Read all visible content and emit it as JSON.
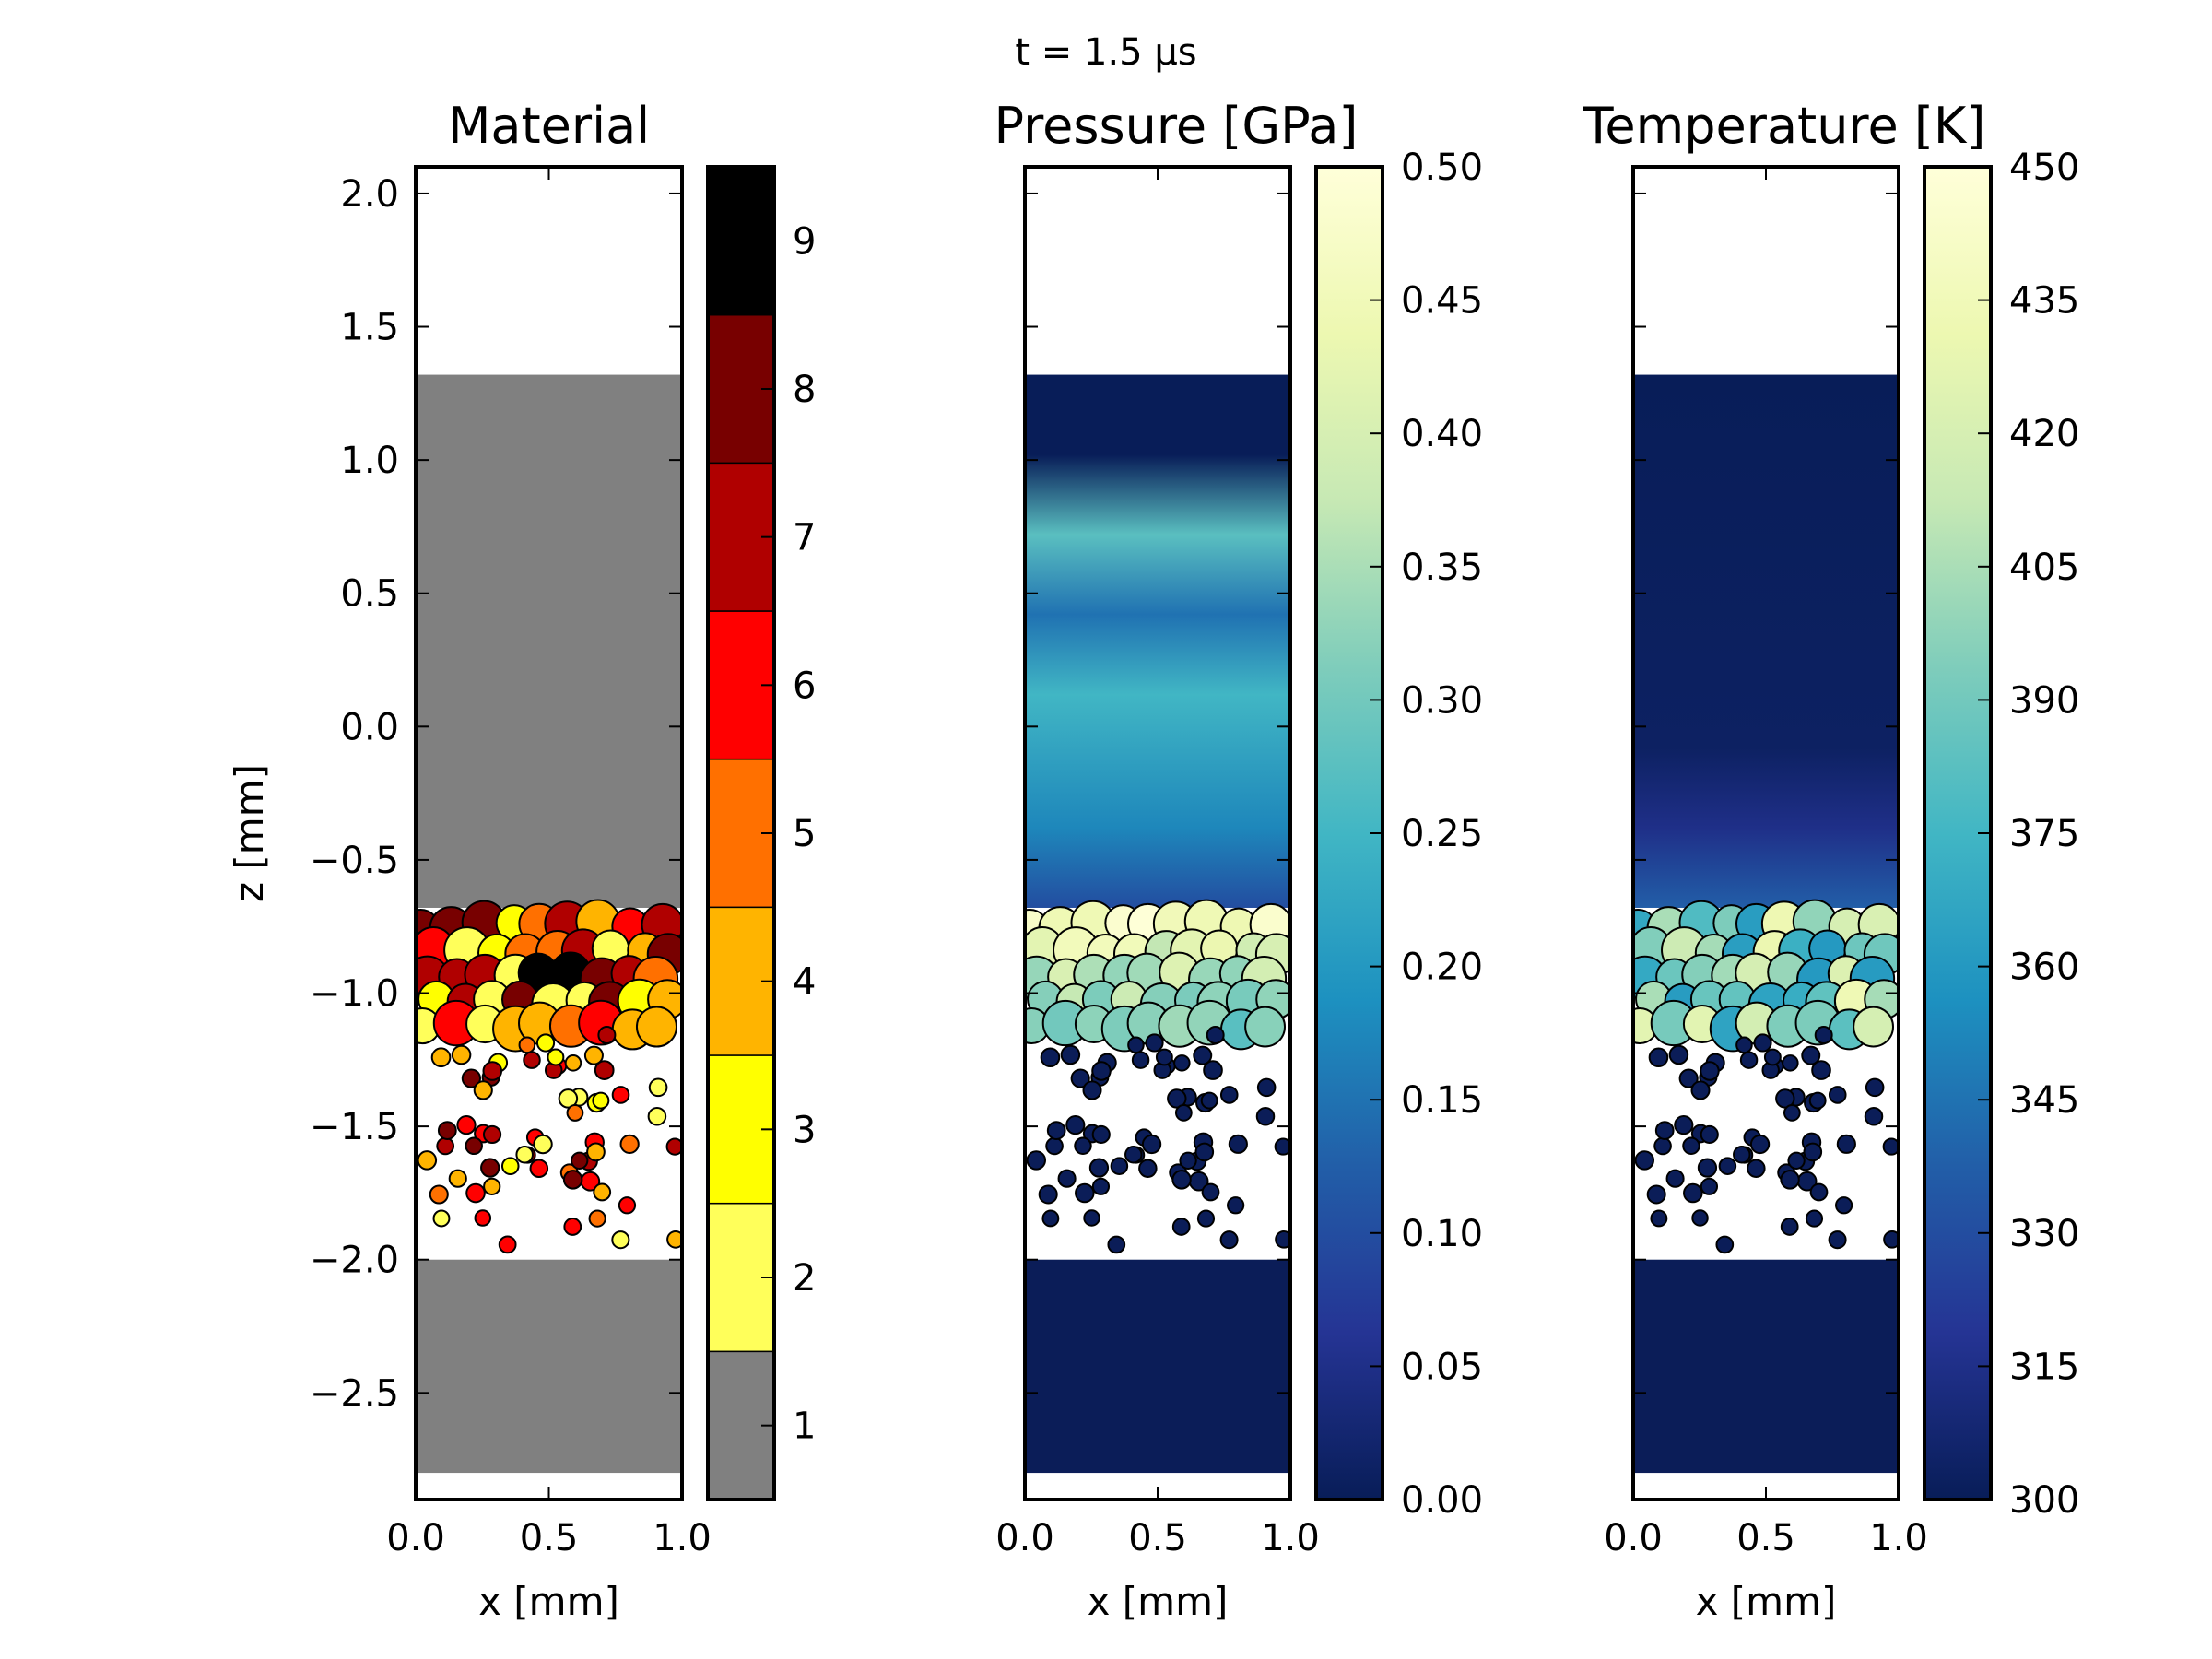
{
  "chart_data": {
    "type": "heatmap",
    "suptitle": "t =  1.5 μs",
    "domain": {
      "x_range_mm": [
        0.0,
        1.0
      ],
      "z_range_mm": [
        -2.9,
        2.1
      ],
      "top_surface_z": 1.32,
      "compacted_layer_z": [
        -1.15,
        -0.68
      ],
      "particle_bed_z": [
        -2.0,
        -1.15
      ],
      "base_plate_z": [
        -2.8,
        -2.0
      ]
    },
    "panels": [
      {
        "id": "material",
        "title": "Material",
        "xlabel": "x [mm]",
        "ylabel": "z [mm]",
        "xticks": [
          "0.0",
          "0.5",
          "1.0"
        ],
        "yticks": [
          {
            "v": 2.0,
            "label": "2.0"
          },
          {
            "v": 1.5,
            "label": "1.5"
          },
          {
            "v": 1.0,
            "label": "1.0"
          },
          {
            "v": 0.5,
            "label": "0.5"
          },
          {
            "v": 0.0,
            "label": "0.0"
          },
          {
            "v": -0.5,
            "label": "−0.5"
          },
          {
            "v": -1.0,
            "label": "−1.0"
          },
          {
            "v": -1.5,
            "label": "−1.5"
          },
          {
            "v": -2.0,
            "label": "−2.0"
          },
          {
            "v": -2.5,
            "label": "−2.5"
          }
        ],
        "colorbar": {
          "type": "discrete",
          "range": [
            0.5,
            9.5
          ],
          "levels": [
            {
              "label": "1",
              "color": "#808080"
            },
            {
              "label": "2",
              "color": "#ffff5a"
            },
            {
              "label": "3",
              "color": "#ffff00"
            },
            {
              "label": "4",
              "color": "#ffb400"
            },
            {
              "label": "5",
              "color": "#ff7000"
            },
            {
              "label": "6",
              "color": "#ff0000"
            },
            {
              "label": "7",
              "color": "#b00000"
            },
            {
              "label": "8",
              "color": "#780000"
            },
            {
              "label": "9",
              "color": "#000000"
            }
          ]
        },
        "fill_color": "#808080"
      },
      {
        "id": "pressure",
        "title": "Pressure [GPa]",
        "xlabel": "x [mm]",
        "xticks": [
          "0.0",
          "0.5",
          "1.0"
        ],
        "colorbar": {
          "type": "continuous",
          "range": [
            0.0,
            0.5
          ],
          "ticks": [
            "0.00",
            "0.05",
            "0.10",
            "0.15",
            "0.20",
            "0.25",
            "0.30",
            "0.35",
            "0.40",
            "0.45",
            "0.50"
          ],
          "colormap": "YlGnBu_r"
        },
        "base_color": "#0b1d58"
      },
      {
        "id": "temperature",
        "title": "Temperature [K]",
        "xlabel": "x [mm]",
        "xticks": [
          "0.0",
          "0.5",
          "1.0"
        ],
        "colorbar": {
          "type": "continuous",
          "range": [
            300,
            450
          ],
          "ticks": [
            "300",
            "315",
            "330",
            "345",
            "360",
            "375",
            "390",
            "405",
            "420",
            "435",
            "450"
          ],
          "colormap": "YlGnBu_r"
        },
        "base_color": "#0b1d58"
      }
    ],
    "colormap_stops": [
      "#081d58",
      "#253494",
      "#225ea8",
      "#1d91c0",
      "#41b6c4",
      "#7fcdbb",
      "#c7e9b4",
      "#edf8b1",
      "#ffffd9"
    ]
  }
}
